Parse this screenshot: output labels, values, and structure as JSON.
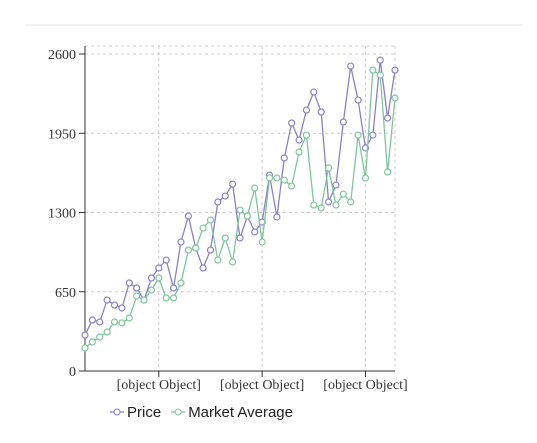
{
  "chart_data": {
    "type": "line",
    "x": [
      0,
      1,
      2,
      3,
      4,
      5,
      6,
      7,
      8,
      9,
      10,
      11,
      12,
      13,
      14,
      15,
      16,
      17,
      18,
      19,
      20,
      21,
      22,
      23,
      24,
      25,
      26,
      27,
      28,
      29,
      30,
      31,
      32,
      33,
      34,
      35,
      36,
      37,
      38,
      39,
      40,
      41,
      42
    ],
    "xlim": [
      0,
      42
    ],
    "xticks": [
      {
        "value": 10,
        "label": "[object Object]"
      },
      {
        "value": 24,
        "label": "[object Object]"
      },
      {
        "value": 38,
        "label": "[object Object]"
      }
    ],
    "ylim": [
      0,
      2600
    ],
    "yticks": [
      0,
      650,
      1300,
      1950,
      2600
    ],
    "grid": true,
    "legend": "bottom",
    "series": [
      {
        "name": "Price",
        "color": "#8a80c6",
        "values": [
          295,
          418,
          402,
          582,
          541,
          517,
          722,
          681,
          582,
          763,
          845,
          910,
          681,
          1058,
          1271,
          1009,
          845,
          992,
          1386,
          1435,
          1533,
          1091,
          1271,
          1140,
          1222,
          1607,
          1263,
          1747,
          2034,
          1894,
          2140,
          2288,
          2124,
          1386,
          1525,
          2042,
          2501,
          2222,
          1829,
          1935,
          2550,
          2075,
          2468
        ]
      },
      {
        "name": "Market Average",
        "color": "#7cc79a",
        "values": [
          189,
          238,
          279,
          320,
          402,
          394,
          435,
          615,
          582,
          664,
          763,
          599,
          599,
          722,
          992,
          1009,
          1173,
          1238,
          910,
          1091,
          894,
          1320,
          1271,
          1500,
          1058,
          1583,
          1583,
          1566,
          1517,
          1796,
          1935,
          1361,
          1337,
          1665,
          1361,
          1451,
          1386,
          1935,
          1583,
          2468,
          2427,
          1632,
          2239
        ]
      }
    ]
  }
}
